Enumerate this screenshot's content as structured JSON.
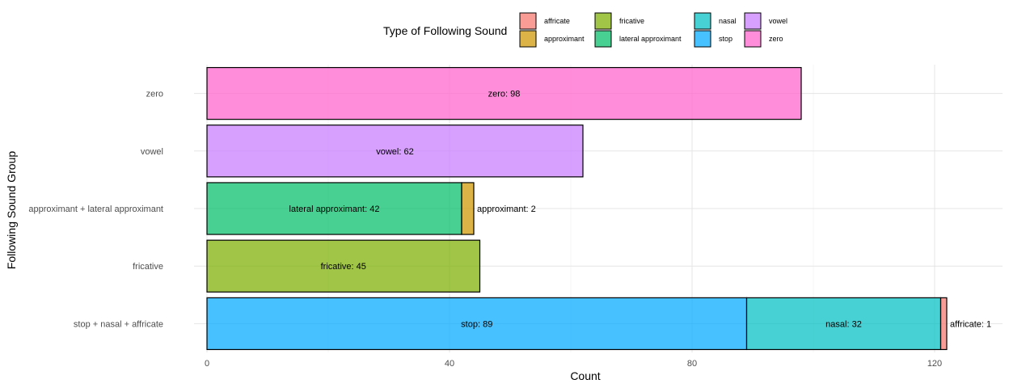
{
  "chart_data": {
    "type": "bar",
    "orientation": "horizontal",
    "stacked": true,
    "xlabel": "Count",
    "ylabel": "Following Sound Group",
    "xlim": [
      0,
      125
    ],
    "x_ticks": [
      0,
      40,
      80,
      120
    ],
    "grid": true,
    "categories": [
      "stop + nasal + affricate",
      "fricative",
      "approximant + lateral approximant",
      "vowel",
      "zero"
    ],
    "legend": {
      "title": "Type of Following Sound",
      "position": "top",
      "entries": [
        {
          "name": "affricate",
          "color": "#F8766D"
        },
        {
          "name": "approximant",
          "color": "#CD9600"
        },
        {
          "name": "fricative",
          "color": "#7CAE00"
        },
        {
          "name": "lateral approximant",
          "color": "#00BE67"
        },
        {
          "name": "nasal",
          "color": "#00BFC4"
        },
        {
          "name": "stop",
          "color": "#00A9FF"
        },
        {
          "name": "vowel",
          "color": "#C77CFF"
        },
        {
          "name": "zero",
          "color": "#FF61CC"
        }
      ]
    },
    "segments": [
      {
        "category": "stop + nasal + affricate",
        "series": "stop",
        "value": 89,
        "label": "stop: 89"
      },
      {
        "category": "stop + nasal + affricate",
        "series": "nasal",
        "value": 32,
        "label": "nasal: 32"
      },
      {
        "category": "stop + nasal + affricate",
        "series": "affricate",
        "value": 1,
        "label": "affricate: 1"
      },
      {
        "category": "fricative",
        "series": "fricative",
        "value": 45,
        "label": "fricative: 45"
      },
      {
        "category": "approximant + lateral approximant",
        "series": "lateral approximant",
        "value": 42,
        "label": "lateral approximant: 42"
      },
      {
        "category": "approximant + lateral approximant",
        "series": "approximant",
        "value": 2,
        "label": "approximant: 2"
      },
      {
        "category": "vowel",
        "series": "vowel",
        "value": 62,
        "label": "vowel: 62"
      },
      {
        "category": "zero",
        "series": "zero",
        "value": 98,
        "label": "zero: 98"
      }
    ]
  }
}
